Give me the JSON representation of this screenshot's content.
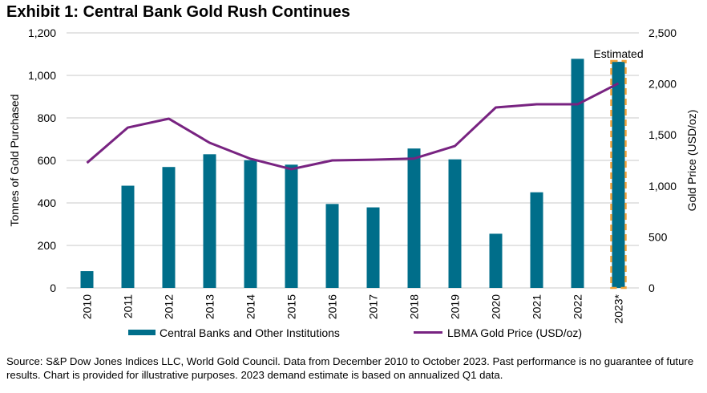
{
  "title": "Exhibit 1: Central Bank Gold Rush Continues",
  "footnote": "Source: S&P Dow Jones Indices LLC, World Gold Council. Data from December 2010 to October 2023. Past performance is no guarantee of future results. Chart is provided for illustrative purposes. 2023 demand estimate is based on annualized Q1 data.",
  "colors": {
    "bar": "#006e8a",
    "line": "#782381",
    "estimate_outline": "#f0a23c",
    "grid": "#c8c8c8"
  },
  "chart_data": {
    "type": "bar",
    "title": "Exhibit 1: Central Bank Gold Rush Continues",
    "categories": [
      "2010",
      "2011",
      "2012",
      "2013",
      "2014",
      "2015",
      "2016",
      "2017",
      "2018",
      "2019",
      "2020",
      "2021",
      "2022",
      "2023*"
    ],
    "series": [
      {
        "name": "Central Banks and Other Institutions",
        "type": "bar",
        "axis": "left",
        "values": [
          79,
          481,
          569,
          629,
          601,
          580,
          395,
          379,
          656,
          605,
          255,
          450,
          1078,
          1064
        ]
      },
      {
        "name": "LBMA Gold Price (USD/oz)",
        "type": "line",
        "axis": "right",
        "values": [
          1226,
          1572,
          1659,
          1423,
          1266,
          1164,
          1250,
          1257,
          1268,
          1391,
          1769,
          1800,
          1800,
          2005
        ]
      }
    ],
    "ylabel": "Tonnes of Gold Purchased",
    "ylim": [
      0,
      1200
    ],
    "yticks": [
      "0",
      "200",
      "400",
      "600",
      "800",
      "1,000",
      "1,200"
    ],
    "y2label": "Gold Price (USD/oz)",
    "y2lim": [
      0,
      2500
    ],
    "y2ticks": [
      "0",
      "500",
      "1,000",
      "1,500",
      "2,000",
      "2,500"
    ],
    "annotation": {
      "category": "2023*",
      "text": "Estimated"
    },
    "grid": true,
    "legend_position": "bottom"
  }
}
